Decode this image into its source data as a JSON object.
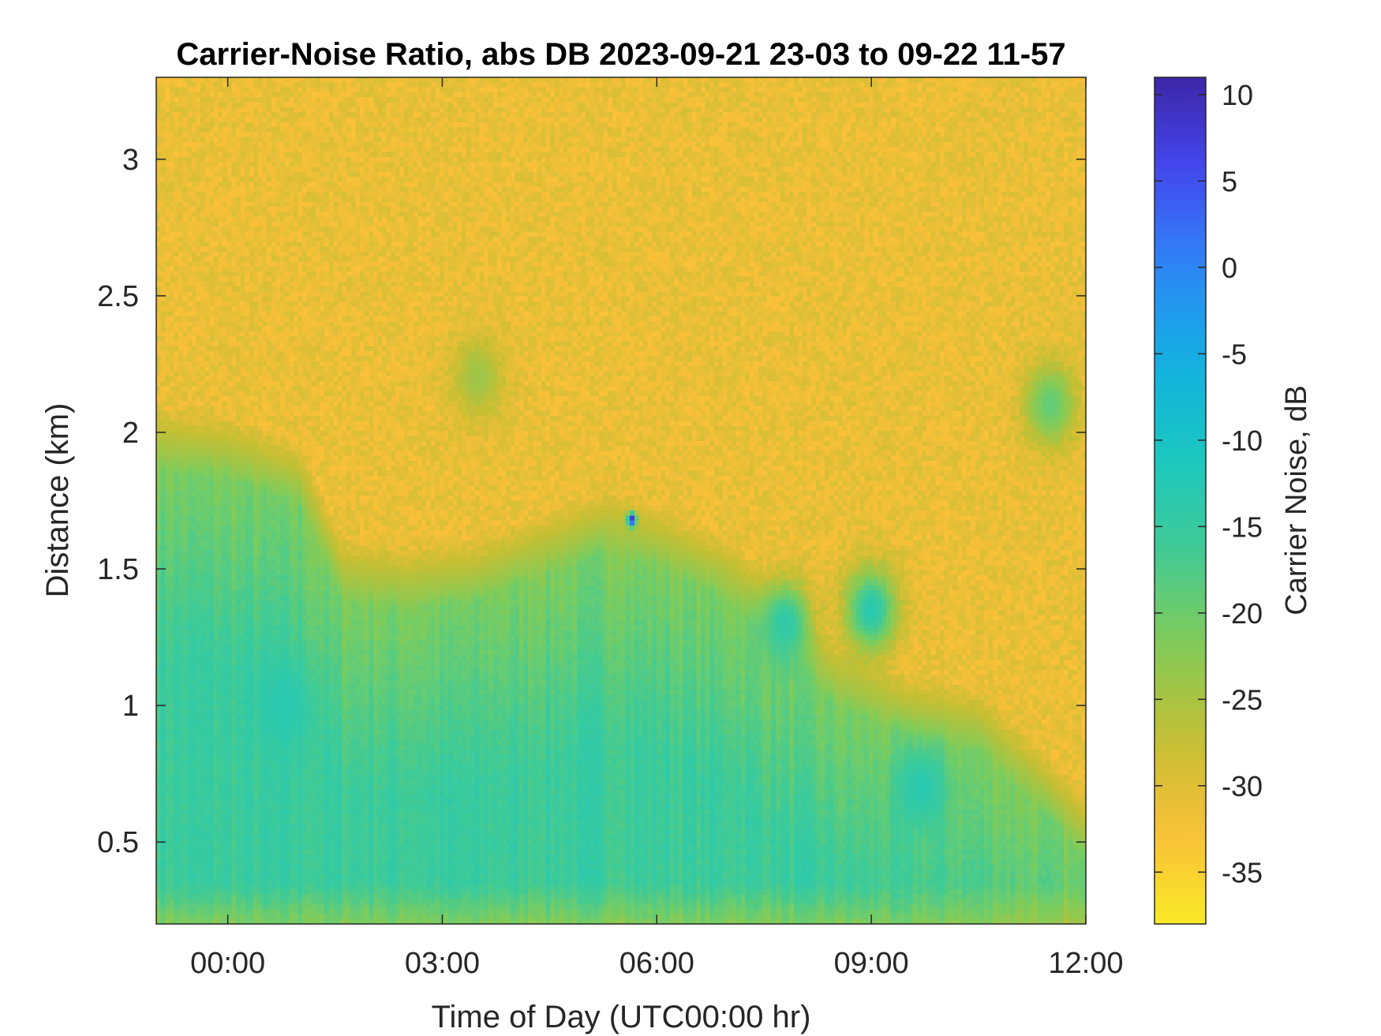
{
  "chart_data": {
    "type": "heatmap",
    "title": "Carrier-Noise Ratio, abs DB 2023-09-21 23-03 to 09-22 11-57",
    "xlabel": "Time of Day (UTC00:00 hr)",
    "ylabel": "Distance (km)",
    "xlim": [
      -1.0,
      12.0
    ],
    "ylim": [
      0.2,
      3.3
    ],
    "x_ticks": [
      {
        "value": 0,
        "label": "00:00"
      },
      {
        "value": 3,
        "label": "03:00"
      },
      {
        "value": 6,
        "label": "06:00"
      },
      {
        "value": 9,
        "label": "09:00"
      },
      {
        "value": 12,
        "label": "12:00"
      }
    ],
    "y_ticks": [
      {
        "value": 0.5,
        "label": "0.5"
      },
      {
        "value": 1,
        "label": "1"
      },
      {
        "value": 1.5,
        "label": "1.5"
      },
      {
        "value": 2,
        "label": "2"
      },
      {
        "value": 2.5,
        "label": "2.5"
      },
      {
        "value": 3,
        "label": "3"
      }
    ],
    "colorbar": {
      "label": "Carrier Noise, dB",
      "range": [
        -38,
        11
      ],
      "ticks": [
        {
          "value": 10,
          "label": "10"
        },
        {
          "value": 5,
          "label": "5"
        },
        {
          "value": 0,
          "label": "0"
        },
        {
          "value": -5,
          "label": "-5"
        },
        {
          "value": -10,
          "label": "-10"
        },
        {
          "value": -15,
          "label": "-15"
        },
        {
          "value": -20,
          "label": "-20"
        },
        {
          "value": -25,
          "label": "-25"
        },
        {
          "value": -30,
          "label": "-30"
        },
        {
          "value": -35,
          "label": "-35"
        }
      ],
      "colormap": "parula",
      "colors": [
        "#3e26a8",
        "#4449f2",
        "#2e87f7",
        "#13b0e3",
        "#1ac7c2",
        "#3fcb97",
        "#81cc59",
        "#c3bf34",
        "#f9bf39",
        "#f9e926"
      ]
    },
    "field": {
      "description_of_values_dB": "high-altitude noise near -31; boundary layer near -18 to -14; minimum -13 in patches; spike near +10",
      "upper_noise_level": -31,
      "boundary_layer_top_km": [
        {
          "x": -1.0,
          "top": 1.98
        },
        {
          "x": 0.0,
          "top": 1.95
        },
        {
          "x": 1.0,
          "top": 1.85
        },
        {
          "x": 1.6,
          "top": 1.5
        },
        {
          "x": 2.5,
          "top": 1.47
        },
        {
          "x": 3.5,
          "top": 1.5
        },
        {
          "x": 4.5,
          "top": 1.6
        },
        {
          "x": 5.3,
          "top": 1.68
        },
        {
          "x": 6.0,
          "top": 1.62
        },
        {
          "x": 7.0,
          "top": 1.5
        },
        {
          "x": 7.6,
          "top": 1.35
        },
        {
          "x": 8.5,
          "top": 1.12
        },
        {
          "x": 9.5,
          "top": 1.0
        },
        {
          "x": 10.5,
          "top": 0.95
        },
        {
          "x": 11.5,
          "top": 0.7
        },
        {
          "x": 12.0,
          "top": 0.55
        }
      ],
      "features": [
        {
          "x": 5.65,
          "y": 1.68,
          "value": 10
        },
        {
          "x": 7.8,
          "y": 1.3,
          "value": -14
        },
        {
          "x": 9.0,
          "y": 1.35,
          "value": -13
        },
        {
          "x": 9.7,
          "y": 0.7,
          "value": -13
        },
        {
          "x": 0.8,
          "y": 1.0,
          "value": -13
        },
        {
          "x": 11.5,
          "y": 2.1,
          "value": -19
        },
        {
          "x": 3.5,
          "y": 2.2,
          "value": -24
        }
      ]
    }
  }
}
